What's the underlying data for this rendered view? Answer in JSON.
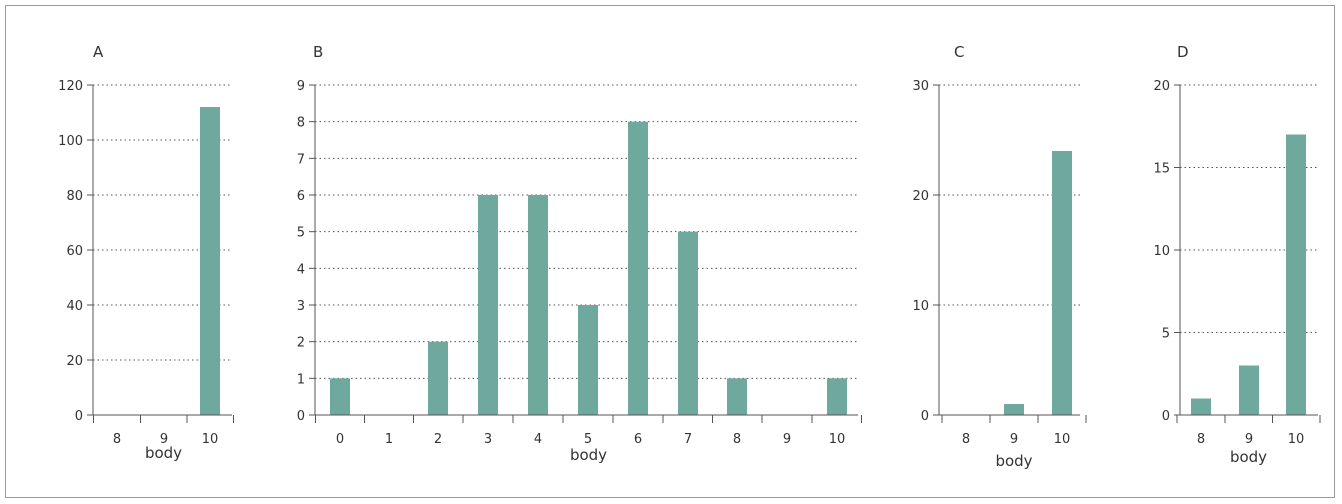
{
  "chart_data": [
    {
      "type": "bar",
      "panel_label": "A",
      "xlabel": "body",
      "ylabel": "",
      "categories": [
        "8",
        "9",
        "10"
      ],
      "values": [
        0,
        0,
        112
      ],
      "ylim": [
        0,
        120
      ],
      "yticks": [
        0,
        20,
        40,
        60,
        80,
        100,
        120
      ],
      "grid": true,
      "bar_color": "#6fa89c"
    },
    {
      "type": "bar",
      "panel_label": "B",
      "xlabel": "body",
      "ylabel": "",
      "categories": [
        "0",
        "1",
        "2",
        "3",
        "4",
        "5",
        "6",
        "7",
        "8",
        "9",
        "10"
      ],
      "values": [
        1,
        0,
        2,
        6,
        6,
        3,
        8,
        5,
        1,
        0,
        1
      ],
      "ylim": [
        0,
        9
      ],
      "yticks": [
        0,
        1,
        2,
        3,
        4,
        5,
        6,
        7,
        8,
        9
      ],
      "grid": true,
      "bar_color": "#6fa89c"
    },
    {
      "type": "bar",
      "panel_label": "C",
      "xlabel": "body",
      "ylabel": "",
      "categories": [
        "8",
        "9",
        "10"
      ],
      "values": [
        0,
        1,
        24
      ],
      "ylim": [
        0,
        30
      ],
      "yticks": [
        0,
        10,
        20,
        30
      ],
      "grid": true,
      "bar_color": "#6fa89c"
    },
    {
      "type": "bar",
      "panel_label": "D",
      "xlabel": "body",
      "ylabel": "",
      "categories": [
        "8",
        "9",
        "10"
      ],
      "values": [
        1,
        3,
        17
      ],
      "ylim": [
        0,
        20
      ],
      "yticks": [
        0,
        5,
        10,
        15,
        20
      ],
      "grid": true,
      "bar_color": "#6fa89c"
    }
  ]
}
